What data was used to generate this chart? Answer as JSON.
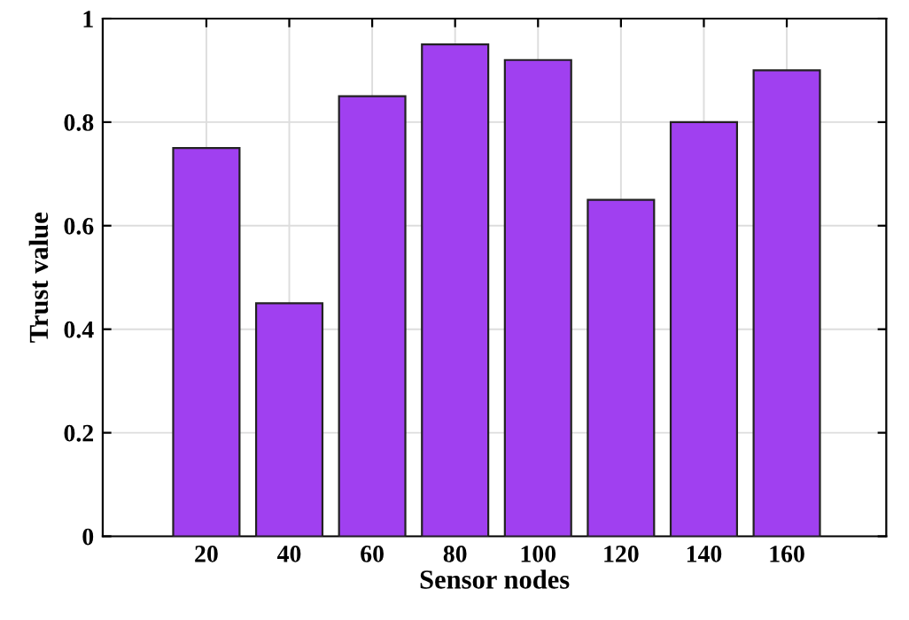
{
  "chart_data": {
    "type": "bar",
    "xlabel": "Sensor nodes",
    "ylabel": "Trust value",
    "categories": [
      "20",
      "40",
      "60",
      "80",
      "100",
      "120",
      "140",
      "160"
    ],
    "values": [
      0.75,
      0.45,
      0.85,
      0.95,
      0.92,
      0.65,
      0.8,
      0.9
    ],
    "color": "#a040f0",
    "ylim": [
      0,
      1
    ],
    "yticks": [
      0,
      0.2,
      0.4,
      0.6,
      0.8,
      1
    ],
    "grid": true
  }
}
